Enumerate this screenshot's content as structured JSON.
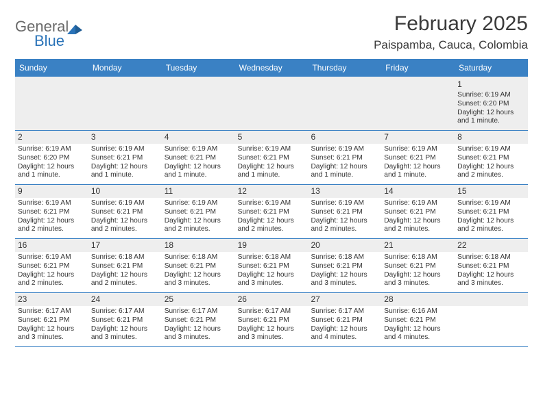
{
  "logo": {
    "word1": "General",
    "word2": "Blue"
  },
  "title": "February 2025",
  "location": "Paispamba, Cauca, Colombia",
  "colors": {
    "header_bg": "#3a81c4",
    "header_text": "#ffffff",
    "stripe": "#eeeeee",
    "border": "#3a81c4",
    "text": "#333333",
    "logo_gray": "#6a6a6a",
    "logo_blue": "#2a73b8"
  },
  "day_names": [
    "Sunday",
    "Monday",
    "Tuesday",
    "Wednesday",
    "Thursday",
    "Friday",
    "Saturday"
  ],
  "layout": {
    "columns": 7,
    "rows": 5,
    "first_dow": "Sunday",
    "fontsize_title": 30,
    "fontsize_location": 17,
    "fontsize_header": 12,
    "fontsize_cell": 10.5
  },
  "weeks": [
    [
      {
        "day": "",
        "sunrise": "",
        "sunset": "",
        "daylight": ""
      },
      {
        "day": "",
        "sunrise": "",
        "sunset": "",
        "daylight": ""
      },
      {
        "day": "",
        "sunrise": "",
        "sunset": "",
        "daylight": ""
      },
      {
        "day": "",
        "sunrise": "",
        "sunset": "",
        "daylight": ""
      },
      {
        "day": "",
        "sunrise": "",
        "sunset": "",
        "daylight": ""
      },
      {
        "day": "",
        "sunrise": "",
        "sunset": "",
        "daylight": ""
      },
      {
        "day": "1",
        "sunrise": "Sunrise: 6:19 AM",
        "sunset": "Sunset: 6:20 PM",
        "daylight": "Daylight: 12 hours and 1 minute."
      }
    ],
    [
      {
        "day": "2",
        "sunrise": "Sunrise: 6:19 AM",
        "sunset": "Sunset: 6:20 PM",
        "daylight": "Daylight: 12 hours and 1 minute."
      },
      {
        "day": "3",
        "sunrise": "Sunrise: 6:19 AM",
        "sunset": "Sunset: 6:21 PM",
        "daylight": "Daylight: 12 hours and 1 minute."
      },
      {
        "day": "4",
        "sunrise": "Sunrise: 6:19 AM",
        "sunset": "Sunset: 6:21 PM",
        "daylight": "Daylight: 12 hours and 1 minute."
      },
      {
        "day": "5",
        "sunrise": "Sunrise: 6:19 AM",
        "sunset": "Sunset: 6:21 PM",
        "daylight": "Daylight: 12 hours and 1 minute."
      },
      {
        "day": "6",
        "sunrise": "Sunrise: 6:19 AM",
        "sunset": "Sunset: 6:21 PM",
        "daylight": "Daylight: 12 hours and 1 minute."
      },
      {
        "day": "7",
        "sunrise": "Sunrise: 6:19 AM",
        "sunset": "Sunset: 6:21 PM",
        "daylight": "Daylight: 12 hours and 1 minute."
      },
      {
        "day": "8",
        "sunrise": "Sunrise: 6:19 AM",
        "sunset": "Sunset: 6:21 PM",
        "daylight": "Daylight: 12 hours and 2 minutes."
      }
    ],
    [
      {
        "day": "9",
        "sunrise": "Sunrise: 6:19 AM",
        "sunset": "Sunset: 6:21 PM",
        "daylight": "Daylight: 12 hours and 2 minutes."
      },
      {
        "day": "10",
        "sunrise": "Sunrise: 6:19 AM",
        "sunset": "Sunset: 6:21 PM",
        "daylight": "Daylight: 12 hours and 2 minutes."
      },
      {
        "day": "11",
        "sunrise": "Sunrise: 6:19 AM",
        "sunset": "Sunset: 6:21 PM",
        "daylight": "Daylight: 12 hours and 2 minutes."
      },
      {
        "day": "12",
        "sunrise": "Sunrise: 6:19 AM",
        "sunset": "Sunset: 6:21 PM",
        "daylight": "Daylight: 12 hours and 2 minutes."
      },
      {
        "day": "13",
        "sunrise": "Sunrise: 6:19 AM",
        "sunset": "Sunset: 6:21 PM",
        "daylight": "Daylight: 12 hours and 2 minutes."
      },
      {
        "day": "14",
        "sunrise": "Sunrise: 6:19 AM",
        "sunset": "Sunset: 6:21 PM",
        "daylight": "Daylight: 12 hours and 2 minutes."
      },
      {
        "day": "15",
        "sunrise": "Sunrise: 6:19 AM",
        "sunset": "Sunset: 6:21 PM",
        "daylight": "Daylight: 12 hours and 2 minutes."
      }
    ],
    [
      {
        "day": "16",
        "sunrise": "Sunrise: 6:19 AM",
        "sunset": "Sunset: 6:21 PM",
        "daylight": "Daylight: 12 hours and 2 minutes."
      },
      {
        "day": "17",
        "sunrise": "Sunrise: 6:18 AM",
        "sunset": "Sunset: 6:21 PM",
        "daylight": "Daylight: 12 hours and 2 minutes."
      },
      {
        "day": "18",
        "sunrise": "Sunrise: 6:18 AM",
        "sunset": "Sunset: 6:21 PM",
        "daylight": "Daylight: 12 hours and 3 minutes."
      },
      {
        "day": "19",
        "sunrise": "Sunrise: 6:18 AM",
        "sunset": "Sunset: 6:21 PM",
        "daylight": "Daylight: 12 hours and 3 minutes."
      },
      {
        "day": "20",
        "sunrise": "Sunrise: 6:18 AM",
        "sunset": "Sunset: 6:21 PM",
        "daylight": "Daylight: 12 hours and 3 minutes."
      },
      {
        "day": "21",
        "sunrise": "Sunrise: 6:18 AM",
        "sunset": "Sunset: 6:21 PM",
        "daylight": "Daylight: 12 hours and 3 minutes."
      },
      {
        "day": "22",
        "sunrise": "Sunrise: 6:18 AM",
        "sunset": "Sunset: 6:21 PM",
        "daylight": "Daylight: 12 hours and 3 minutes."
      }
    ],
    [
      {
        "day": "23",
        "sunrise": "Sunrise: 6:17 AM",
        "sunset": "Sunset: 6:21 PM",
        "daylight": "Daylight: 12 hours and 3 minutes."
      },
      {
        "day": "24",
        "sunrise": "Sunrise: 6:17 AM",
        "sunset": "Sunset: 6:21 PM",
        "daylight": "Daylight: 12 hours and 3 minutes."
      },
      {
        "day": "25",
        "sunrise": "Sunrise: 6:17 AM",
        "sunset": "Sunset: 6:21 PM",
        "daylight": "Daylight: 12 hours and 3 minutes."
      },
      {
        "day": "26",
        "sunrise": "Sunrise: 6:17 AM",
        "sunset": "Sunset: 6:21 PM",
        "daylight": "Daylight: 12 hours and 3 minutes."
      },
      {
        "day": "27",
        "sunrise": "Sunrise: 6:17 AM",
        "sunset": "Sunset: 6:21 PM",
        "daylight": "Daylight: 12 hours and 4 minutes."
      },
      {
        "day": "28",
        "sunrise": "Sunrise: 6:16 AM",
        "sunset": "Sunset: 6:21 PM",
        "daylight": "Daylight: 12 hours and 4 minutes."
      },
      {
        "day": "",
        "sunrise": "",
        "sunset": "",
        "daylight": ""
      }
    ]
  ]
}
